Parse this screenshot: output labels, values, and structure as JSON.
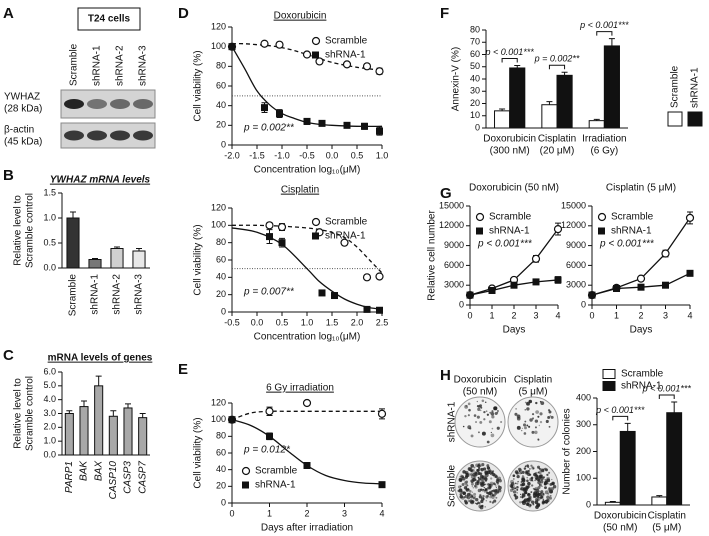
{
  "panel_labels": [
    "A",
    "B",
    "C",
    "D",
    "E",
    "F",
    "G",
    "H"
  ],
  "blot": {
    "title": "T24 cells",
    "lanes": [
      "Scramble",
      "shRNA-1",
      "shRNA-2",
      "shRNA-3"
    ],
    "rows": [
      [
        "YWHAZ",
        "(28 kDa)"
      ],
      [
        "β-actin",
        "(45 kDa)"
      ]
    ]
  },
  "colonies": {
    "columns": [
      [
        "Doxorubicin",
        "(50 nM)"
      ],
      [
        "Cisplatin",
        "(5 μM)"
      ]
    ],
    "rows": [
      "shRNA-1",
      "Scramble"
    ]
  },
  "chart_data": [
    {
      "type": "bar",
      "title": "YWHAZ mRNA levels",
      "ylabel": [
        "Relative level to",
        "Scramble control"
      ],
      "categories": [
        "Scramble",
        "shRNA-1",
        "shRNA-2",
        "shRNA-3"
      ],
      "rotate_labels": true,
      "ylim": [
        0,
        1.5
      ],
      "yticks": [
        {
          "value": 0,
          "label": "0.0"
        },
        {
          "value": 0.5,
          "label": "0.5"
        },
        {
          "value": 1,
          "label": "1.0"
        },
        {
          "value": 1.5,
          "label": "1.5"
        }
      ],
      "series": [
        {
          "colors": [
            "#333333",
            "#777777",
            "#d0d0d0",
            "#e8e8e8"
          ],
          "values": [
            1.0,
            0.17,
            0.39,
            0.34
          ],
          "errors": [
            0.12,
            0.02,
            0.03,
            0.05
          ]
        }
      ]
    },
    {
      "type": "bar",
      "title": "mRNA levels of genes",
      "ylabel": [
        "Relative level to",
        "Scramble control"
      ],
      "categories": [
        "PARP1",
        "BAK",
        "BAX",
        "CASP10",
        "CASP3",
        "CASP7"
      ],
      "rotate_labels": true,
      "italic_labels": true,
      "ylim": [
        0,
        6
      ],
      "yticks": [
        {
          "value": 0,
          "label": "0.0"
        },
        {
          "value": 1,
          "label": "1.0"
        },
        {
          "value": 2,
          "label": "2.0"
        },
        {
          "value": 3,
          "label": "3.0"
        },
        {
          "value": 4,
          "label": "4.0"
        },
        {
          "value": 5,
          "label": "5.0"
        },
        {
          "value": 6,
          "label": "6.0"
        }
      ],
      "series": [
        {
          "color": "#a8a8a8",
          "values": [
            3.0,
            3.5,
            5.0,
            2.8,
            3.4,
            2.7
          ],
          "errors": [
            0.2,
            0.4,
            0.7,
            0.4,
            0.3,
            0.3
          ]
        }
      ]
    },
    {
      "type": "line",
      "title": "Doxorubicin",
      "ylabel": "Cell viability (%)",
      "xlabel": "Concentration log₁₀(μM)",
      "xlim": [
        -2,
        1
      ],
      "xticks": [
        {
          "value": -2,
          "label": "-2.0"
        },
        {
          "value": -1.5,
          "label": "-1.5"
        },
        {
          "value": -1,
          "label": "-1.0"
        },
        {
          "value": -0.5,
          "label": "-0.5"
        },
        {
          "value": 0,
          "label": "0.0"
        },
        {
          "value": 0.5,
          "label": "0.5"
        },
        {
          "value": 1,
          "label": "1.0"
        }
      ],
      "ylim": [
        0,
        120
      ],
      "yticks": [
        0,
        20,
        40,
        60,
        80,
        100,
        120
      ],
      "ref_line": 50,
      "annotation": "p = 0.002**",
      "legend": "top-right",
      "fit_x": [
        -2,
        -1.75,
        -1.5,
        -1.25,
        -1,
        -0.75,
        -0.5,
        -0.25,
        0,
        0.5,
        1
      ],
      "series": [
        {
          "name": "Scramble",
          "marker": "open-circle",
          "dash": true,
          "x": [
            -2,
            -1.35,
            -1.05,
            -0.5,
            -0.25,
            0.3,
            0.7,
            0.95
          ],
          "values": [
            100,
            103,
            102,
            92,
            85,
            82,
            80,
            75
          ],
          "errors": [
            0,
            2,
            2,
            2,
            2,
            2,
            2,
            3
          ],
          "fit": [
            103,
            103,
            102,
            101,
            99,
            96,
            92,
            88,
            84,
            79,
            76
          ]
        },
        {
          "name": "shRNA-1",
          "marker": "filled-square",
          "dash": false,
          "x": [
            -2,
            -1.35,
            -1.05,
            -0.5,
            -0.2,
            0.3,
            0.65,
            0.95
          ],
          "values": [
            100,
            38,
            32,
            24,
            22,
            20,
            19,
            14
          ],
          "errors": [
            0,
            5,
            4,
            3,
            2,
            2,
            3,
            4
          ],
          "fit": [
            100,
            78,
            55,
            41,
            32,
            27,
            23,
            21,
            20,
            19,
            19
          ]
        }
      ]
    },
    {
      "type": "line",
      "title": "Cisplatin",
      "ylabel": "Cell viability (%)",
      "xlabel": "Concentration log₁₀(μM)",
      "xlim": [
        -0.5,
        2.5
      ],
      "xticks": [
        {
          "value": -0.5,
          "label": "-0.5"
        },
        {
          "value": 0,
          "label": "0.0"
        },
        {
          "value": 0.5,
          "label": "0.5"
        },
        {
          "value": 1,
          "label": "1.0"
        },
        {
          "value": 1.5,
          "label": "1.5"
        },
        {
          "value": 2,
          "label": "2.0"
        },
        {
          "value": 2.5,
          "label": "2.5"
        }
      ],
      "ylim": [
        0,
        120
      ],
      "yticks": [
        0,
        20,
        40,
        60,
        80,
        100,
        120
      ],
      "ref_line": 50,
      "annotation": "p = 0.007**",
      "legend": "top-right",
      "fit_x": [
        -0.5,
        0,
        0.5,
        1,
        1.25,
        1.5,
        1.75,
        2,
        2.25,
        2.5
      ],
      "series": [
        {
          "name": "Scramble",
          "marker": "open-circle",
          "dash": true,
          "x": [
            0.25,
            0.5,
            1.25,
            1.75,
            2.2,
            2.45
          ],
          "values": [
            100,
            98,
            92,
            80,
            40,
            41
          ],
          "errors": [
            3,
            4,
            2,
            2,
            2,
            2
          ],
          "fit": [
            100,
            100,
            99,
            97,
            95,
            92,
            86,
            75,
            60,
            45
          ]
        },
        {
          "name": "shRNA-1",
          "marker": "filled-square",
          "dash": false,
          "x": [
            0.25,
            0.5,
            1.3,
            1.55,
            2.2,
            2.45
          ],
          "values": [
            87,
            80,
            22,
            19,
            3,
            2
          ],
          "errors": [
            8,
            5,
            2,
            2,
            1,
            1
          ],
          "fit": [
            97,
            92,
            78,
            50,
            35,
            24,
            15,
            9,
            5,
            3
          ]
        }
      ]
    },
    {
      "type": "line",
      "title": "6 Gy irradiation",
      "ylabel": "Cell viability (%)",
      "xlabel": "Days after irradiation",
      "xlim": [
        0,
        4
      ],
      "xticks": [
        0,
        1,
        2,
        3,
        4
      ],
      "ylim": [
        0,
        120
      ],
      "yticks": [
        0,
        20,
        40,
        60,
        80,
        100,
        120
      ],
      "annotation": "p = 0.012*",
      "legend": "bottom-left",
      "fit_x": [
        0,
        0.5,
        1,
        1.5,
        2,
        2.5,
        3,
        3.5,
        4
      ],
      "series": [
        {
          "name": "Scramble",
          "marker": "open-circle",
          "dash": true,
          "x": [
            0,
            1,
            2,
            4
          ],
          "values": [
            100,
            110,
            120,
            107
          ],
          "errors": [
            0,
            5,
            1,
            6
          ],
          "fit": [
            100,
            108,
            110,
            110,
            110,
            110,
            110,
            110,
            110
          ]
        },
        {
          "name": "shRNA-1",
          "marker": "filled-square",
          "dash": false,
          "x": [
            0,
            1,
            2,
            4
          ],
          "values": [
            100,
            80,
            45,
            22
          ],
          "errors": [
            0,
            4,
            3,
            1
          ],
          "fit": [
            100,
            93,
            80,
            62,
            45,
            33,
            27,
            24,
            23
          ]
        }
      ]
    },
    {
      "type": "bar",
      "ylabel": "Annexin-V (%)",
      "categories": [
        [
          "Doxorubicin",
          "(300 nM)"
        ],
        [
          "Cisplatin",
          "(20 μM)"
        ],
        [
          "Irradiation",
          "(6 Gy)"
        ]
      ],
      "ylim": [
        0,
        80
      ],
      "yticks": [
        0,
        10,
        20,
        30,
        40,
        50,
        60,
        70,
        80
      ],
      "legend": "right",
      "annotations": [
        "p < 0.001***",
        "p = 0.002**",
        "p < 0.001***"
      ],
      "series": [
        {
          "name": "Scramble",
          "color": "#ffffff",
          "values": [
            14,
            19,
            6
          ],
          "errors": [
            1.5,
            2.5,
            1
          ]
        },
        {
          "name": "shRNA-1",
          "color": "#111111",
          "values": [
            49,
            43,
            67
          ],
          "errors": [
            2,
            2.5,
            6
          ]
        }
      ]
    },
    {
      "type": "line",
      "title": "Doxorubicin (50 nM)",
      "ylabel": "Relative cell number",
      "xlabel": "Days",
      "xlim": [
        0,
        4
      ],
      "xticks": [
        0,
        1,
        2,
        3,
        4
      ],
      "ylim": [
        0,
        15000
      ],
      "yticks": [
        0,
        3000,
        6000,
        9000,
        12000,
        15000
      ],
      "annotation": "p < 0.001***",
      "legend": "top-left",
      "series": [
        {
          "name": "Scramble",
          "marker": "open-circle",
          "dash": false,
          "x": [
            0,
            1,
            2,
            3,
            4
          ],
          "values": [
            1500,
            2500,
            3800,
            7000,
            11500
          ],
          "errors": [
            100,
            200,
            300,
            500,
            900
          ]
        },
        {
          "name": "shRNA-1",
          "marker": "filled-square",
          "dash": false,
          "x": [
            0,
            1,
            2,
            3,
            4
          ],
          "values": [
            1500,
            2200,
            3000,
            3500,
            3800
          ],
          "errors": [
            100,
            150,
            300,
            400,
            500
          ]
        }
      ]
    },
    {
      "type": "line",
      "title": "Cisplatin (5 μM)",
      "xlabel": "Days",
      "xlim": [
        0,
        4
      ],
      "xticks": [
        0,
        1,
        2,
        3,
        4
      ],
      "ylim": [
        0,
        15000
      ],
      "yticks": [
        0,
        3000,
        6000,
        9000,
        12000,
        15000
      ],
      "annotation": "p < 0.001***",
      "legend": "top-left",
      "series": [
        {
          "name": "Scramble",
          "marker": "open-circle",
          "dash": false,
          "x": [
            0,
            1,
            2,
            3,
            4
          ],
          "values": [
            1500,
            2600,
            4000,
            7800,
            13200
          ],
          "errors": [
            100,
            200,
            300,
            500,
            900
          ]
        },
        {
          "name": "shRNA-1",
          "marker": "filled-square",
          "dash": false,
          "x": [
            0,
            1,
            2,
            3,
            4
          ],
          "values": [
            1500,
            2500,
            2700,
            3000,
            4800
          ],
          "errors": [
            100,
            200,
            200,
            300,
            400
          ]
        }
      ]
    },
    {
      "type": "bar",
      "ylabel": "Number of colonies",
      "categories": [
        [
          "Doxorubicin",
          "(50 nM)"
        ],
        [
          "Cisplatin",
          "(5 μM)"
        ]
      ],
      "ylim": [
        0,
        400
      ],
      "yticks": [
        0,
        100,
        200,
        300,
        400
      ],
      "legend": "top",
      "annotations": [
        "p < 0.001***",
        "p < 0.001***"
      ],
      "series": [
        {
          "name": "Scramble",
          "color": "#ffffff",
          "values": [
            10,
            30
          ],
          "errors": [
            3,
            5
          ]
        },
        {
          "name": "shRNA-1",
          "color": "#111111",
          "values": [
            275,
            345
          ],
          "errors": [
            30,
            40
          ]
        }
      ]
    }
  ]
}
